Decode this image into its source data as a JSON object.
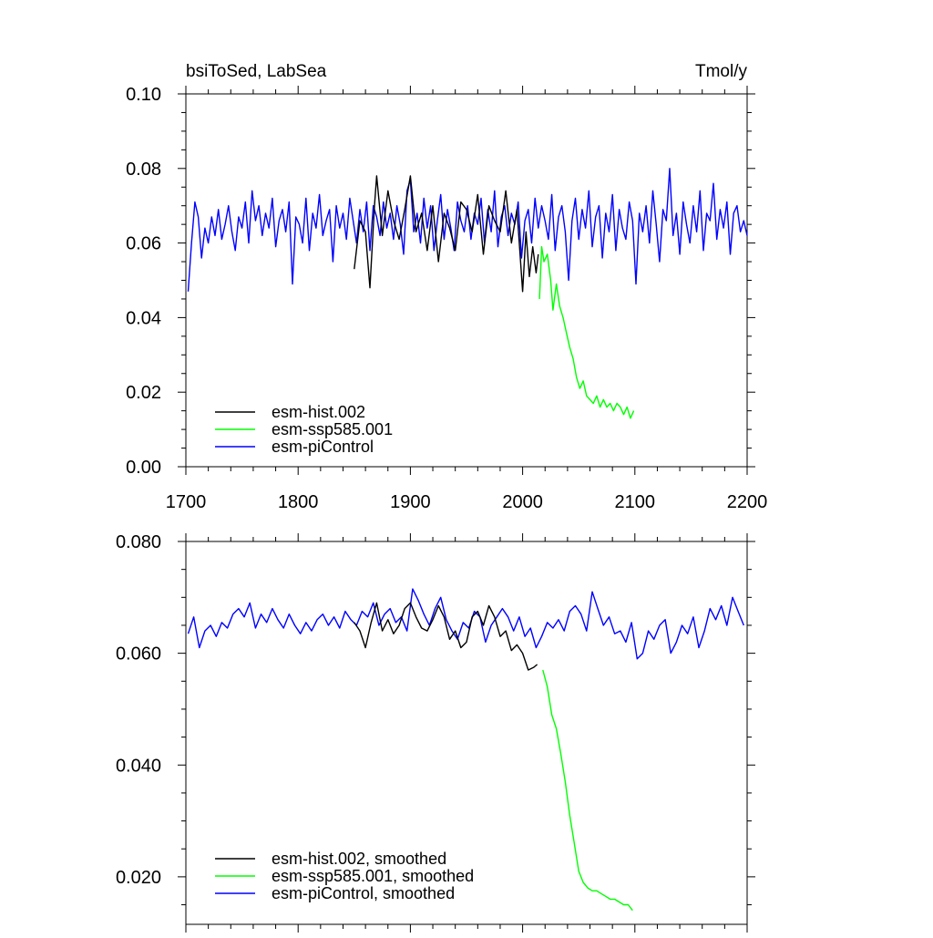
{
  "chart_data": [
    {
      "type": "line",
      "title": "bsiToSed, LabSea",
      "units": "Tmol/y",
      "xlabel": "",
      "ylabel": "",
      "xlim": [
        1700,
        2200
      ],
      "ylim": [
        0.0,
        0.1
      ],
      "x_ticks": [
        1700,
        1800,
        1900,
        2000,
        2100,
        2200
      ],
      "y_ticks": [
        0.0,
        0.02,
        0.04,
        0.06,
        0.08,
        0.1
      ],
      "x_tick_labels": [
        "1700",
        "1800",
        "1900",
        "2000",
        "2100",
        "2200"
      ],
      "y_tick_labels": [
        "0.00",
        "0.02",
        "0.04",
        "0.06",
        "0.08",
        "0.10"
      ],
      "legend_position": "bottom-left",
      "series": [
        {
          "name": "esm-hist.002",
          "color": "#000000",
          "x": [
            1850,
            1855,
            1860,
            1864,
            1868,
            1870,
            1875,
            1880,
            1885,
            1890,
            1895,
            1900,
            1905,
            1910,
            1915,
            1920,
            1925,
            1930,
            1935,
            1940,
            1945,
            1950,
            1955,
            1960,
            1965,
            1970,
            1975,
            1980,
            1985,
            1990,
            1995,
            2000,
            2003,
            2006,
            2009,
            2012,
            2014
          ],
          "values": [
            0.053,
            0.066,
            0.063,
            0.048,
            0.07,
            0.078,
            0.062,
            0.074,
            0.066,
            0.061,
            0.069,
            0.078,
            0.063,
            0.068,
            0.058,
            0.07,
            0.055,
            0.068,
            0.064,
            0.058,
            0.071,
            0.069,
            0.063,
            0.073,
            0.057,
            0.07,
            0.066,
            0.063,
            0.074,
            0.06,
            0.069,
            0.047,
            0.063,
            0.051,
            0.059,
            0.052,
            0.057
          ]
        },
        {
          "name": "esm-ssp585.001",
          "color": "#00ff00",
          "x": [
            2015,
            2017,
            2019,
            2022,
            2025,
            2027,
            2030,
            2033,
            2036,
            2039,
            2042,
            2045,
            2048,
            2051,
            2054,
            2057,
            2060,
            2063,
            2066,
            2069,
            2072,
            2075,
            2078,
            2081,
            2084,
            2087,
            2090,
            2093,
            2096,
            2099
          ],
          "values": [
            0.045,
            0.059,
            0.055,
            0.057,
            0.05,
            0.042,
            0.049,
            0.043,
            0.04,
            0.036,
            0.032,
            0.029,
            0.024,
            0.021,
            0.023,
            0.019,
            0.018,
            0.017,
            0.019,
            0.016,
            0.018,
            0.016,
            0.017,
            0.015,
            0.017,
            0.016,
            0.014,
            0.016,
            0.013,
            0.015
          ]
        },
        {
          "name": "esm-piControl",
          "color": "#0000ff",
          "x": [
            1702,
            1705,
            1708,
            1711,
            1714,
            1717,
            1720,
            1723,
            1726,
            1729,
            1732,
            1735,
            1738,
            1741,
            1744,
            1747,
            1750,
            1753,
            1756,
            1759,
            1762,
            1765,
            1768,
            1771,
            1774,
            1777,
            1780,
            1783,
            1786,
            1789,
            1792,
            1795,
            1798,
            1801,
            1804,
            1807,
            1810,
            1813,
            1816,
            1819,
            1822,
            1825,
            1828,
            1831,
            1834,
            1837,
            1840,
            1843,
            1846,
            1849,
            1852,
            1855,
            1858,
            1861,
            1864,
            1867,
            1870,
            1873,
            1876,
            1879,
            1882,
            1885,
            1888,
            1891,
            1894,
            1897,
            1900,
            1903,
            1906,
            1909,
            1912,
            1915,
            1918,
            1921,
            1924,
            1927,
            1930,
            1933,
            1936,
            1939,
            1942,
            1945,
            1948,
            1951,
            1954,
            1957,
            1960,
            1963,
            1966,
            1969,
            1972,
            1975,
            1978,
            1981,
            1984,
            1987,
            1990,
            1993,
            1996,
            1999,
            2002,
            2005,
            2008,
            2011,
            2014,
            2017,
            2020,
            2023,
            2026,
            2029,
            2032,
            2035,
            2038,
            2041,
            2044,
            2047,
            2050,
            2053,
            2056,
            2059,
            2062,
            2065,
            2068,
            2071,
            2074,
            2077,
            2080,
            2083,
            2086,
            2089,
            2092,
            2095,
            2098,
            2101,
            2104,
            2107,
            2110,
            2113,
            2116,
            2119,
            2122,
            2125,
            2128,
            2131,
            2134,
            2137,
            2140,
            2143,
            2146,
            2149,
            2152,
            2155,
            2158,
            2161,
            2164,
            2167,
            2170,
            2173,
            2176,
            2179,
            2182,
            2185,
            2188,
            2191,
            2194,
            2197,
            2200
          ],
          "values": [
            0.047,
            0.06,
            0.071,
            0.067,
            0.056,
            0.064,
            0.06,
            0.067,
            0.062,
            0.069,
            0.061,
            0.065,
            0.07,
            0.063,
            0.058,
            0.067,
            0.064,
            0.071,
            0.06,
            0.074,
            0.066,
            0.07,
            0.062,
            0.068,
            0.064,
            0.072,
            0.059,
            0.066,
            0.069,
            0.063,
            0.071,
            0.049,
            0.067,
            0.065,
            0.06,
            0.072,
            0.058,
            0.068,
            0.064,
            0.073,
            0.062,
            0.066,
            0.069,
            0.055,
            0.07,
            0.064,
            0.068,
            0.061,
            0.072,
            0.066,
            0.06,
            0.069,
            0.063,
            0.071,
            0.058,
            0.07,
            0.067,
            0.062,
            0.071,
            0.064,
            0.068,
            0.061,
            0.07,
            0.065,
            0.057,
            0.074,
            0.077,
            0.063,
            0.068,
            0.06,
            0.072,
            0.064,
            0.07,
            0.058,
            0.066,
            0.073,
            0.061,
            0.069,
            0.064,
            0.058,
            0.071,
            0.066,
            0.063,
            0.07,
            0.061,
            0.068,
            0.065,
            0.072,
            0.06,
            0.069,
            0.063,
            0.074,
            0.059,
            0.067,
            0.07,
            0.062,
            0.068,
            0.065,
            0.071,
            0.056,
            0.066,
            0.069,
            0.06,
            0.072,
            0.064,
            0.07,
            0.066,
            0.061,
            0.073,
            0.058,
            0.067,
            0.07,
            0.063,
            0.05,
            0.066,
            0.072,
            0.061,
            0.069,
            0.064,
            0.074,
            0.059,
            0.067,
            0.07,
            0.056,
            0.068,
            0.063,
            0.073,
            0.058,
            0.069,
            0.064,
            0.061,
            0.071,
            0.066,
            0.049,
            0.068,
            0.063,
            0.07,
            0.06,
            0.074,
            0.065,
            0.055,
            0.069,
            0.066,
            0.08,
            0.062,
            0.068,
            0.057,
            0.071,
            0.065,
            0.06,
            0.07,
            0.063,
            0.074,
            0.058,
            0.068,
            0.066,
            0.076,
            0.061,
            0.069,
            0.064,
            0.071,
            0.057,
            0.068,
            0.07,
            0.063,
            0.066,
            0.062
          ]
        }
      ]
    },
    {
      "type": "line",
      "title": "",
      "xlabel": "",
      "ylabel": "",
      "xlim": [
        1700,
        2200
      ],
      "ylim": [
        0.0115,
        0.08
      ],
      "x_ticks": [
        1700,
        1800,
        1900,
        2000,
        2100,
        2200
      ],
      "y_ticks": [
        0.02,
        0.04,
        0.06,
        0.08
      ],
      "y_tick_labels": [
        "0.020",
        "0.040",
        "0.060",
        "0.080"
      ],
      "legend_position": "bottom-left",
      "series": [
        {
          "name": "esm-hist.002, smoothed",
          "color": "#000000",
          "x": [
            1850,
            1855,
            1860,
            1865,
            1870,
            1875,
            1880,
            1885,
            1890,
            1895,
            1900,
            1905,
            1910,
            1915,
            1920,
            1925,
            1930,
            1935,
            1940,
            1945,
            1950,
            1955,
            1960,
            1965,
            1970,
            1975,
            1980,
            1985,
            1990,
            1995,
            2000,
            2005,
            2010,
            2013
          ],
          "values": [
            0.0655,
            0.064,
            0.061,
            0.0655,
            0.069,
            0.064,
            0.066,
            0.0635,
            0.065,
            0.068,
            0.069,
            0.0665,
            0.0645,
            0.064,
            0.066,
            0.0685,
            0.0665,
            0.0625,
            0.064,
            0.061,
            0.062,
            0.0665,
            0.0675,
            0.065,
            0.0685,
            0.0665,
            0.063,
            0.064,
            0.0605,
            0.0615,
            0.06,
            0.057,
            0.0575,
            0.058
          ]
        },
        {
          "name": "esm-ssp585.001, smoothed",
          "color": "#00ff00",
          "x": [
            2018,
            2022,
            2026,
            2030,
            2034,
            2038,
            2042,
            2046,
            2050,
            2054,
            2058,
            2062,
            2066,
            2070,
            2074,
            2078,
            2082,
            2086,
            2090,
            2094,
            2098
          ],
          "values": [
            0.057,
            0.054,
            0.049,
            0.0465,
            0.042,
            0.037,
            0.031,
            0.026,
            0.021,
            0.019,
            0.018,
            0.0175,
            0.0175,
            0.017,
            0.0165,
            0.016,
            0.016,
            0.0155,
            0.015,
            0.015,
            0.014
          ]
        },
        {
          "name": "esm-piControl, smoothed",
          "color": "#0000ff",
          "x": [
            1702,
            1707,
            1712,
            1717,
            1722,
            1727,
            1732,
            1737,
            1742,
            1747,
            1752,
            1757,
            1762,
            1767,
            1772,
            1777,
            1782,
            1787,
            1792,
            1797,
            1802,
            1807,
            1812,
            1817,
            1822,
            1827,
            1832,
            1837,
            1842,
            1847,
            1852,
            1857,
            1862,
            1867,
            1872,
            1877,
            1882,
            1887,
            1892,
            1897,
            1902,
            1907,
            1912,
            1917,
            1922,
            1927,
            1932,
            1937,
            1942,
            1947,
            1952,
            1957,
            1962,
            1967,
            1972,
            1977,
            1982,
            1987,
            1992,
            1997,
            2002,
            2007,
            2012,
            2017,
            2022,
            2027,
            2032,
            2037,
            2042,
            2047,
            2052,
            2057,
            2062,
            2067,
            2072,
            2077,
            2082,
            2087,
            2092,
            2097,
            2102,
            2107,
            2112,
            2117,
            2122,
            2127,
            2132,
            2137,
            2142,
            2147,
            2152,
            2157,
            2162,
            2167,
            2172,
            2177,
            2182,
            2187,
            2192,
            2197
          ],
          "values": [
            0.0635,
            0.0665,
            0.061,
            0.064,
            0.065,
            0.063,
            0.0655,
            0.0645,
            0.067,
            0.068,
            0.0665,
            0.069,
            0.0645,
            0.067,
            0.0655,
            0.068,
            0.066,
            0.0645,
            0.067,
            0.065,
            0.0635,
            0.0655,
            0.064,
            0.066,
            0.067,
            0.065,
            0.0665,
            0.0645,
            0.0675,
            0.066,
            0.065,
            0.0675,
            0.0665,
            0.069,
            0.065,
            0.067,
            0.068,
            0.0655,
            0.0665,
            0.064,
            0.0715,
            0.0695,
            0.067,
            0.065,
            0.068,
            0.07,
            0.066,
            0.064,
            0.0625,
            0.0655,
            0.0645,
            0.0675,
            0.0665,
            0.062,
            0.065,
            0.0665,
            0.068,
            0.0665,
            0.064,
            0.0665,
            0.063,
            0.0645,
            0.061,
            0.063,
            0.0655,
            0.0645,
            0.066,
            0.064,
            0.0675,
            0.0685,
            0.067,
            0.064,
            0.071,
            0.068,
            0.065,
            0.0665,
            0.0635,
            0.064,
            0.062,
            0.0655,
            0.059,
            0.06,
            0.064,
            0.0625,
            0.065,
            0.066,
            0.06,
            0.062,
            0.065,
            0.0635,
            0.0665,
            0.061,
            0.064,
            0.068,
            0.066,
            0.0685,
            0.065,
            0.07,
            0.0675,
            0.065
          ]
        }
      ]
    }
  ]
}
